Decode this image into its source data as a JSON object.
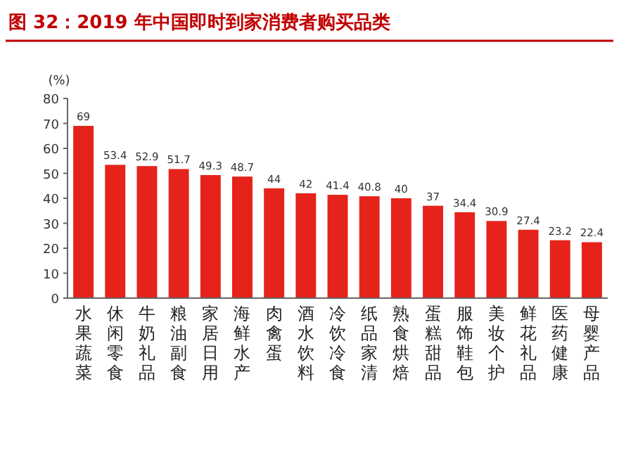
{
  "chart_data": {
    "type": "bar",
    "title": "图 32：2019 年中国即时到家消费者购买品类",
    "ylabel": "(%)",
    "categories": [
      "水果蔬菜",
      "休闲零食",
      "牛奶礼品",
      "粮油副食",
      "家居日用",
      "海鲜水产",
      "肉禽蛋",
      "酒水饮料",
      "冷饮冷食",
      "纸品家清",
      "熟食烘焙",
      "蛋糕甜品",
      "服饰鞋包",
      "美妆个护",
      "鲜花礼品",
      "医药健康",
      "母婴产品"
    ],
    "values": [
      69,
      53.4,
      52.9,
      51.7,
      49.3,
      48.7,
      44,
      42,
      41.4,
      40.8,
      40,
      37,
      34.4,
      30.9,
      27.4,
      23.2,
      22.4
    ],
    "color": "#e5231b",
    "ylim": [
      0,
      80
    ],
    "yticks": [
      0,
      10,
      20,
      30,
      40,
      50,
      60,
      70,
      80
    ],
    "data_labels": true,
    "grid": false
  }
}
